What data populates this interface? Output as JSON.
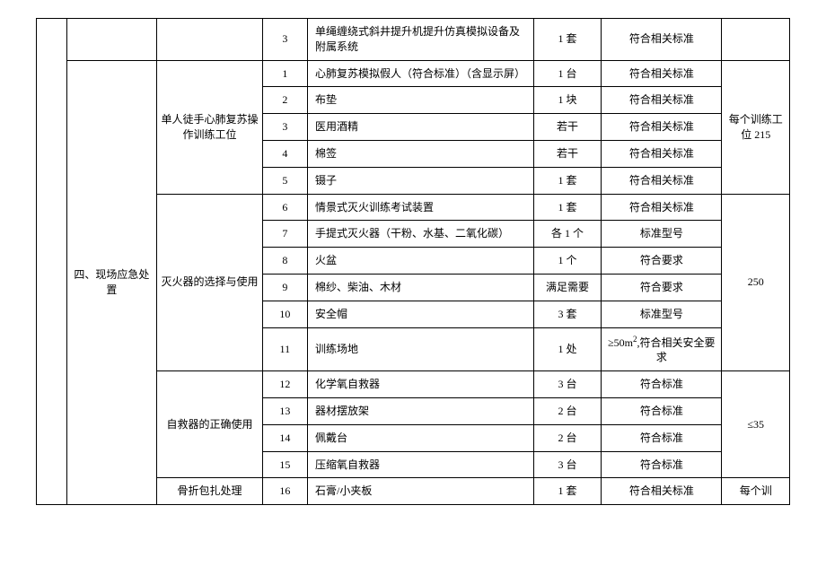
{
  "section": {
    "col1": "",
    "col2": "四、现场应急处置"
  },
  "groupA": {
    "name": "",
    "row0": {
      "no": "3",
      "item": "单绳缠绕式斜井提升机提升仿真模拟设备及附属系统",
      "qty": "1 套",
      "std": "符合相关标准",
      "note": ""
    }
  },
  "groupB": {
    "name": "单人徒手心肺复苏操作训练工位",
    "note": "每个训练工位 215",
    "rows": [
      {
        "no": "1",
        "item": "心肺复苏模拟假人（符合标准）（含显示屏）",
        "qty": "1 台",
        "std": "符合相关标准"
      },
      {
        "no": "2",
        "item": "布垫",
        "qty": "1 块",
        "std": "符合相关标准"
      },
      {
        "no": "3",
        "item": "医用酒精",
        "qty": "若干",
        "std": "符合相关标准"
      },
      {
        "no": "4",
        "item": "棉签",
        "qty": "若干",
        "std": "符合相关标准"
      },
      {
        "no": "5",
        "item": "镊子",
        "qty": "1 套",
        "std": "符合相关标准"
      }
    ]
  },
  "groupC": {
    "name": "灭火器的选择与使用",
    "note": "250",
    "rows": [
      {
        "no": "6",
        "item": "情景式灭火训练考试装置",
        "qty": "1 套",
        "std": "符合相关标准"
      },
      {
        "no": "7",
        "item": "手提式灭火器（干粉、水基、二氧化碳）",
        "qty": "各 1 个",
        "std": "标准型号"
      },
      {
        "no": "8",
        "item": "火盆",
        "qty": "1 个",
        "std": "符合要求"
      },
      {
        "no": "9",
        "item": "棉纱、柴油、木材",
        "qty": "满足需要",
        "std": "符合要求"
      },
      {
        "no": "10",
        "item": "安全帽",
        "qty": "3 套",
        "std": "标准型号"
      },
      {
        "no": "11",
        "item": "训练场地",
        "qty": "1 处",
        "std": "≥50m²,符合相关安全要求"
      }
    ]
  },
  "groupD": {
    "name": "自救器的正确使用",
    "note": "≤35",
    "rows": [
      {
        "no": "12",
        "item": "化学氧自救器",
        "qty": "3 台",
        "std": "符合标准"
      },
      {
        "no": "13",
        "item": "器材摆放架",
        "qty": "2 台",
        "std": "符合标准"
      },
      {
        "no": "14",
        "item": "佩戴台",
        "qty": "2 台",
        "std": "符合标准"
      },
      {
        "no": "15",
        "item": "压缩氧自救器",
        "qty": "3 台",
        "std": "符合标准"
      }
    ]
  },
  "groupE": {
    "name": "骨折包扎处理",
    "note": "每个训",
    "row": {
      "no": "16",
      "item": "石膏/小夹板",
      "qty": "1 套",
      "std": "符合相关标准"
    }
  }
}
